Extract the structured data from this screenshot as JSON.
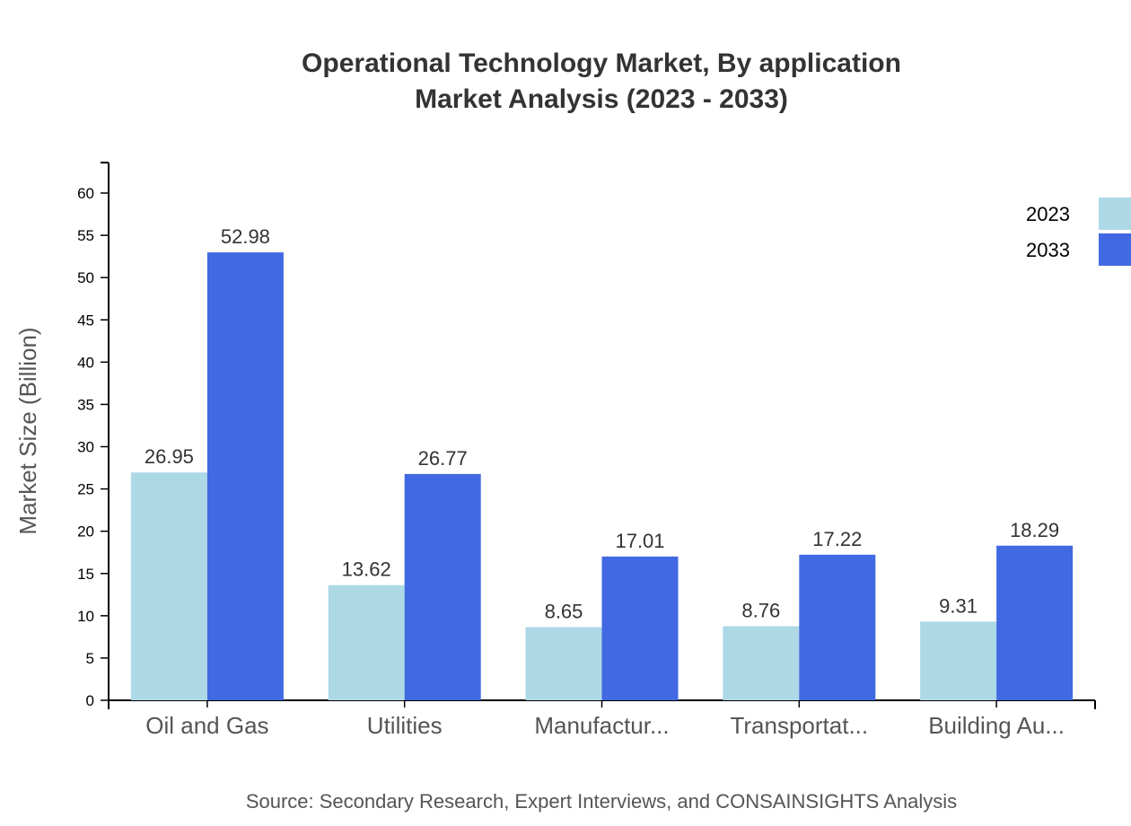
{
  "chart_data": {
    "type": "bar",
    "title": "Operational Technology Market, By application",
    "subtitle": "Market Analysis (2023 - 2033)",
    "xlabel": "",
    "ylabel": "Market Size (Billion)",
    "ylim": [
      0,
      63.6
    ],
    "yticks": [
      0,
      5,
      10,
      15,
      20,
      25,
      30,
      35,
      40,
      45,
      50,
      55,
      60
    ],
    "categories": [
      "Oil and Gas",
      "Utilities",
      "Manufactur...",
      "Transportat...",
      "Building Au..."
    ],
    "series": [
      {
        "name": "2023",
        "color": "#add8e6",
        "values": [
          26.95,
          13.62,
          8.65,
          8.76,
          9.31
        ]
      },
      {
        "name": "2033",
        "color": "#4169e1",
        "values": [
          52.98,
          26.77,
          17.01,
          17.22,
          18.29
        ]
      }
    ],
    "grid": false,
    "legend": "top-right",
    "source": "Source: Secondary Research, Expert Interviews, and CONSAINSIGHTS Analysis"
  }
}
